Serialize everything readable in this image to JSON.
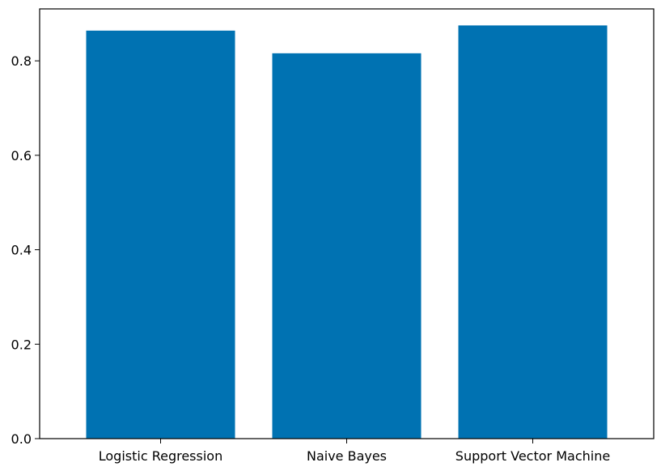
{
  "chart_data": {
    "type": "bar",
    "title": "",
    "xlabel": "",
    "ylabel": "",
    "categories": [
      "Logistic Regression",
      "Naive Bayes",
      "Support Vector Machine"
    ],
    "values": [
      0.864,
      0.816,
      0.875
    ],
    "ylim": [
      0,
      0.91
    ],
    "yticks": [
      0.0,
      0.2,
      0.4,
      0.6,
      0.8
    ],
    "ytick_labels": [
      "0.0",
      "0.2",
      "0.4",
      "0.6",
      "0.8"
    ],
    "grid": false,
    "legend": "none",
    "colors": {
      "bar": "#0072b2",
      "axes": "#000000",
      "background": "#ffffff"
    }
  }
}
